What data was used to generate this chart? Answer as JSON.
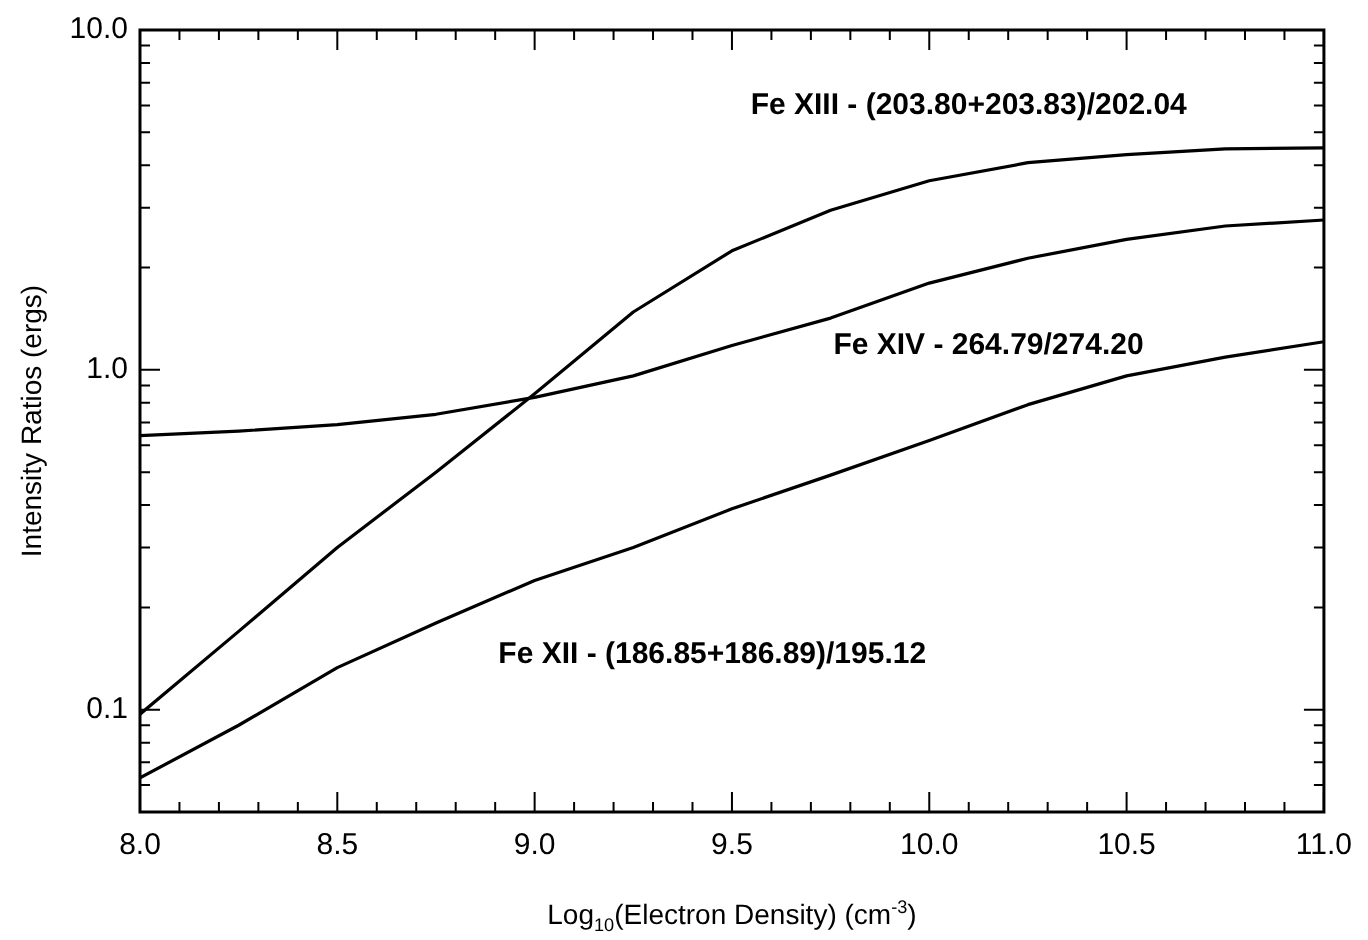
{
  "chart_data": {
    "type": "line",
    "xlabel": "Log$_{10}$(Electron Density) (cm$^{-3}$)",
    "ylabel": "Intensity Ratios (ergs)",
    "x": [
      8.0,
      8.25,
      8.5,
      8.75,
      9.0,
      9.25,
      9.5,
      9.75,
      10.0,
      10.25,
      10.5,
      10.75,
      11.0
    ],
    "series": [
      {
        "name": "Fe XIII - (203.80+203.83)/202.04",
        "color": "#000000",
        "values": [
          0.097,
          0.17,
          0.3,
          0.5,
          0.85,
          1.48,
          2.24,
          2.95,
          3.6,
          4.07,
          4.3,
          4.47,
          4.5
        ]
      },
      {
        "name": "Fe XIV - 264.79/274.20",
        "color": "#000000",
        "values": [
          0.64,
          0.66,
          0.69,
          0.74,
          0.83,
          0.96,
          1.18,
          1.42,
          1.8,
          2.13,
          2.42,
          2.65,
          2.76
        ]
      },
      {
        "name": "Fe XII - (186.85+186.89)/195.12",
        "color": "#000000",
        "values": [
          0.063,
          0.09,
          0.133,
          0.18,
          0.24,
          0.3,
          0.39,
          0.49,
          0.62,
          0.79,
          0.96,
          1.09,
          1.21
        ]
      }
    ],
    "log": "y",
    "xlim": [
      8.0,
      11.0
    ],
    "ylim": [
      0.05,
      10
    ],
    "xticks": [
      {
        "value": 8,
        "label": "8.0"
      },
      {
        "value": 8.1,
        "label": null
      },
      {
        "value": 8.2,
        "label": null
      },
      {
        "value": 8.3,
        "label": null
      },
      {
        "value": 8.4,
        "label": null
      },
      {
        "value": 8.5,
        "label": "8.5"
      },
      {
        "value": 8.6,
        "label": null
      },
      {
        "value": 8.7,
        "label": null
      },
      {
        "value": 8.8,
        "label": null
      },
      {
        "value": 8.9,
        "label": null
      },
      {
        "value": 9,
        "label": "9.0"
      },
      {
        "value": 9.1,
        "label": null
      },
      {
        "value": 9.2,
        "label": null
      },
      {
        "value": 9.3,
        "label": null
      },
      {
        "value": 9.4,
        "label": null
      },
      {
        "value": 9.5,
        "label": "9.5"
      },
      {
        "value": 9.6,
        "label": null
      },
      {
        "value": 9.7,
        "label": null
      },
      {
        "value": 9.8,
        "label": null
      },
      {
        "value": 9.9,
        "label": null
      },
      {
        "value": 10,
        "label": "10.0"
      },
      {
        "value": 10.1,
        "label": null
      },
      {
        "value": 10.2,
        "label": null
      },
      {
        "value": 10.3,
        "label": null
      },
      {
        "value": 10.4,
        "label": null
      },
      {
        "value": 10.5,
        "label": "10.5"
      },
      {
        "value": 10.6,
        "label": null
      },
      {
        "value": 10.7,
        "label": null
      },
      {
        "value": 10.8,
        "label": null
      },
      {
        "value": 10.9,
        "label": null
      },
      {
        "value": 11,
        "label": "11.0"
      }
    ],
    "yticks": [
      {
        "value": 0.06,
        "label": null
      },
      {
        "value": 0.07,
        "label": null
      },
      {
        "value": 0.08,
        "label": null
      },
      {
        "value": 0.09,
        "label": null
      },
      0.1,
      {
        "value": 0.2,
        "label": null
      },
      {
        "value": 0.3,
        "label": null
      },
      {
        "value": 0.4,
        "label": null
      },
      {
        "value": 0.5,
        "label": null
      },
      {
        "value": 0.6,
        "label": null
      },
      {
        "value": 0.7,
        "label": null
      },
      {
        "value": 0.8,
        "label": null
      },
      {
        "value": 0.9,
        "label": null
      },
      {
        "value": 1,
        "label": "1.0"
      },
      {
        "value": 2,
        "label": null
      },
      {
        "value": 3,
        "label": null
      },
      {
        "value": 4,
        "label": null
      },
      {
        "value": 5,
        "label": null
      },
      {
        "value": 6,
        "label": null
      },
      {
        "value": 7,
        "label": null
      },
      {
        "value": 8,
        "label": null
      },
      {
        "value": 9,
        "label": null
      },
      {
        "value": 10,
        "label": "10.0"
      }
    ],
    "grid": false,
    "legend": false,
    "marker": "none",
    "line_style": "solid"
  }
}
